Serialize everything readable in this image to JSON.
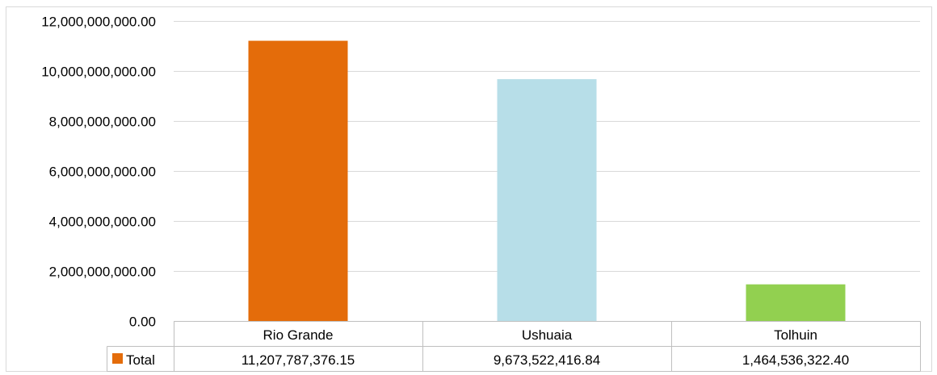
{
  "chart_data": {
    "type": "bar",
    "categories": [
      "Rio Grande",
      "Ushuaia",
      "Tolhuin"
    ],
    "values": [
      11207787376.15,
      9673522416.84,
      1464536322.4
    ],
    "bar_colors": [
      "#E46C0A",
      "#B7DEE8",
      "#92D050"
    ],
    "legend_swatch_color": "#E46C0A",
    "series": [
      {
        "name": "Total",
        "values": [
          11207787376.15,
          9673522416.84,
          1464536322.4
        ]
      }
    ],
    "ylim": [
      0,
      12000000000
    ],
    "yticks": [
      0,
      2000000000,
      4000000000,
      6000000000,
      8000000000,
      10000000000,
      12000000000
    ],
    "ytick_labels": [
      "0.00",
      "2,000,000,000.00",
      "4,000,000,000.00",
      "6,000,000,000.00",
      "8,000,000,000.00",
      "10,000,000,000.00",
      "12,000,000,000.00"
    ],
    "table": {
      "row_label": "Total",
      "cells": [
        "11,207,787,376.15",
        "9,673,522,416.84",
        "1,464,536,322.40"
      ]
    },
    "grid": true,
    "legend": "data-table"
  }
}
